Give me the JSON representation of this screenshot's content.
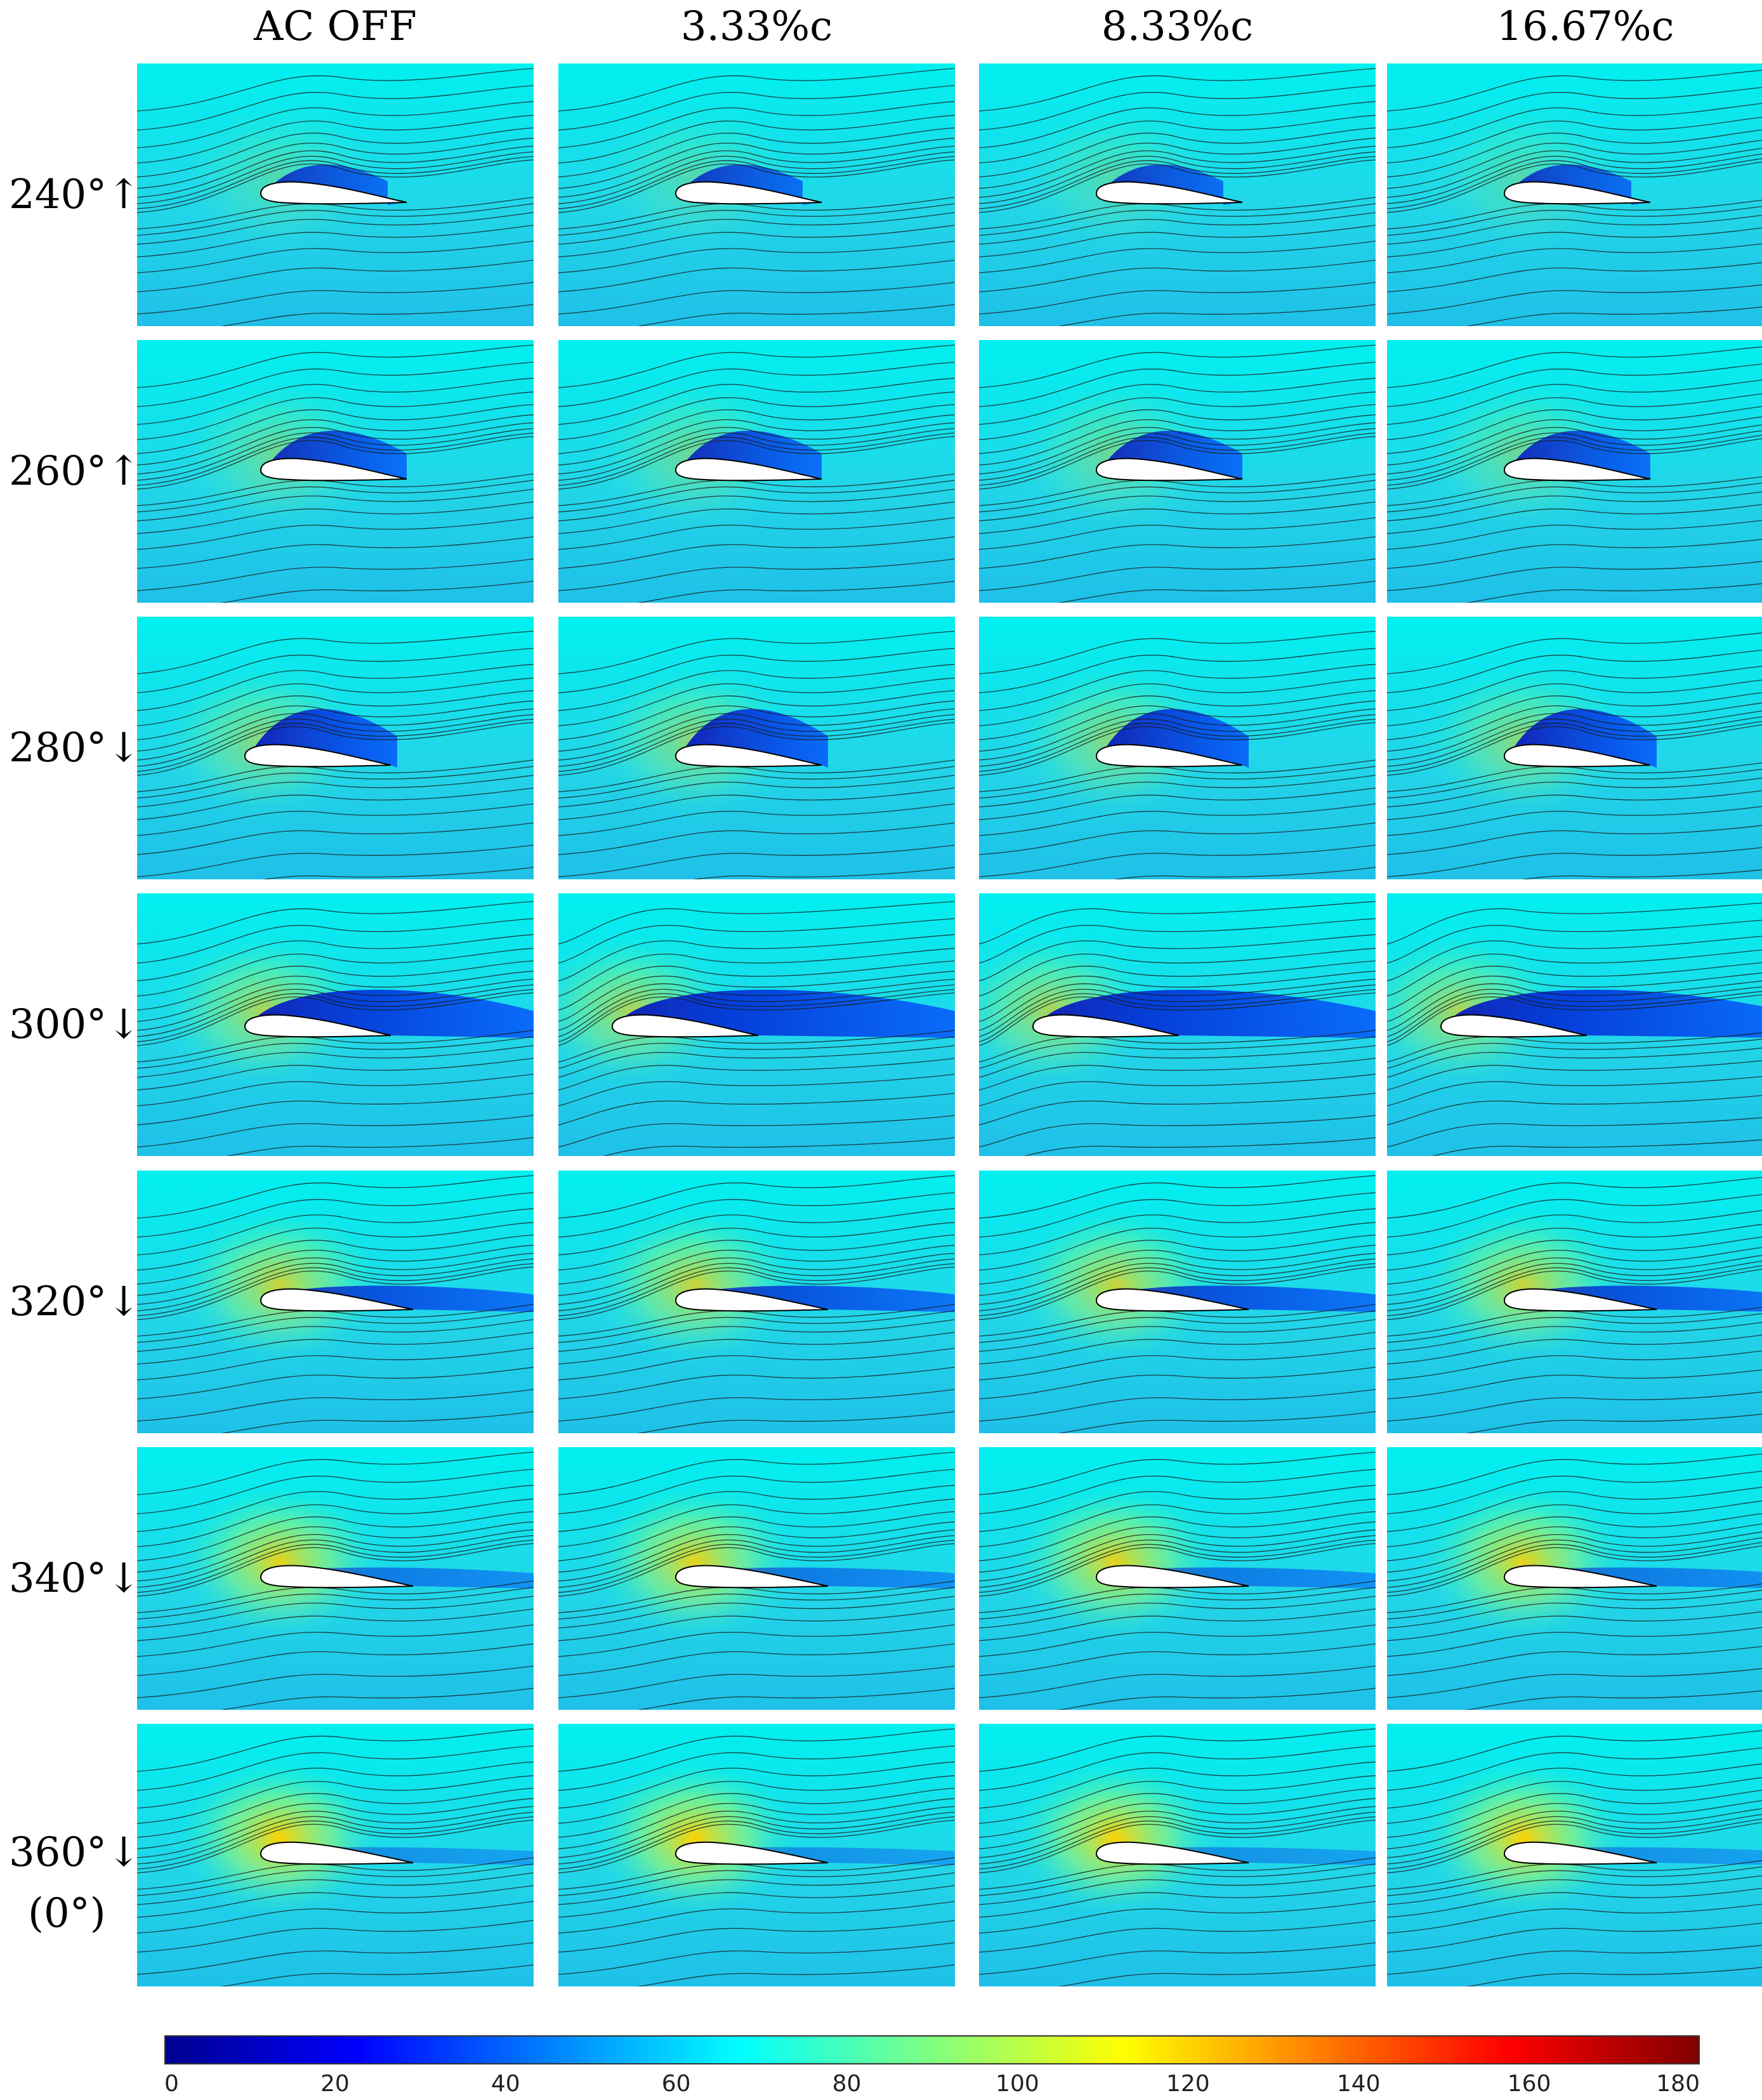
{
  "column_headers": [
    "AC OFF",
    "3.33%c",
    "8.33%c",
    "16.67%c"
  ],
  "row_headers": [
    {
      "label": "240°↑",
      "sub": ""
    },
    {
      "label": "260°↑",
      "sub": ""
    },
    {
      "label": "280°↓",
      "sub": ""
    },
    {
      "label": "300°↓",
      "sub": ""
    },
    {
      "label": "320°↓",
      "sub": ""
    },
    {
      "label": "340°↓",
      "sub": ""
    },
    {
      "label": "360°↓",
      "sub": "(0°)"
    }
  ],
  "colorbar": {
    "ticks": [
      "0",
      "20",
      "40",
      "60",
      "80",
      "100",
      "120",
      "140",
      "160",
      "180"
    ],
    "min": 0,
    "max": 180,
    "colormap": "jet",
    "colors": [
      "#00008f",
      "#0000ff",
      "#0080ff",
      "#00ffff",
      "#80ff80",
      "#ffff00",
      "#ff8000",
      "#ff0000",
      "#800000"
    ]
  },
  "panel_colors": {
    "background": "#22d6e8",
    "freestream": "#00f0f0",
    "wake": "#0010c0",
    "stagnation": "#ffd000",
    "streamline": "#1a1a1a",
    "airfoil": "#ffffff"
  }
}
